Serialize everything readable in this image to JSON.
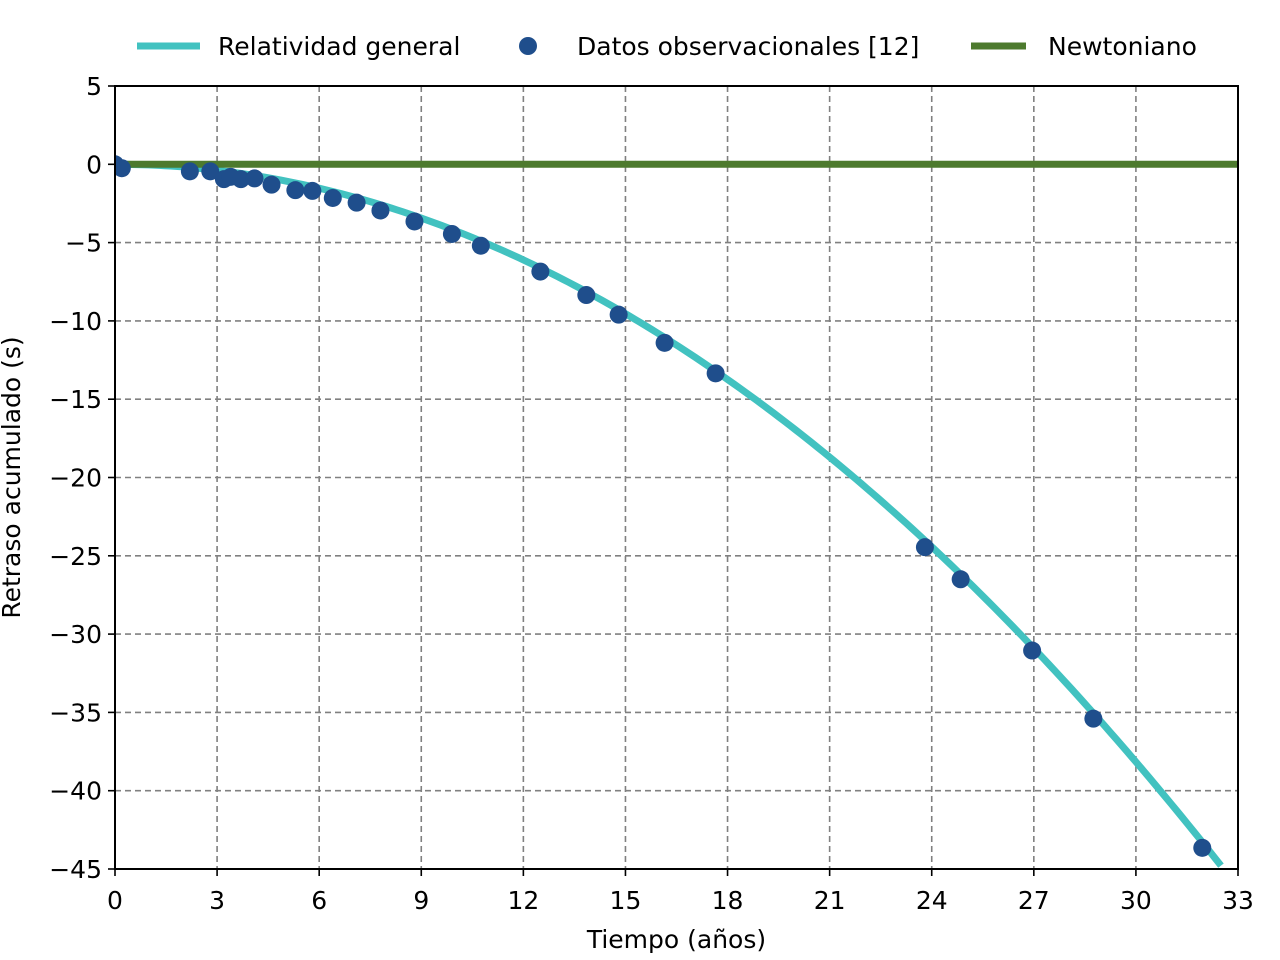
{
  "chart_data": {
    "type": "line",
    "title": "",
    "xlabel": "Tiempo (años)",
    "ylabel": "Retraso acumulado (s)",
    "xlim": [
      0,
      33
    ],
    "ylim": [
      -45,
      5
    ],
    "xticks": [
      0,
      3,
      6,
      9,
      12,
      15,
      18,
      21,
      24,
      27,
      30,
      33
    ],
    "yticks": [
      5,
      0,
      -5,
      -10,
      -15,
      -20,
      -25,
      -30,
      -35,
      -40,
      -45
    ],
    "grid": true,
    "legend_position": "top-center",
    "series": [
      {
        "name": "Relatividad general",
        "kind": "line",
        "color": "#42c2c0",
        "curve": {
          "form": "quadratic",
          "a": -0.0424
        },
        "x_max": 32.5
      },
      {
        "name": "Datos observacionales [12]",
        "kind": "scatter",
        "color": "#1f4e8c",
        "points": [
          [
            0.0,
            0.0
          ],
          [
            0.2,
            -0.25
          ],
          [
            2.2,
            -0.45
          ],
          [
            2.8,
            -0.45
          ],
          [
            3.2,
            -0.95
          ],
          [
            3.4,
            -0.8
          ],
          [
            3.7,
            -0.95
          ],
          [
            4.1,
            -0.9
          ],
          [
            4.6,
            -1.3
          ],
          [
            5.3,
            -1.65
          ],
          [
            5.8,
            -1.7
          ],
          [
            6.4,
            -2.15
          ],
          [
            7.1,
            -2.45
          ],
          [
            7.8,
            -2.95
          ],
          [
            8.8,
            -3.65
          ],
          [
            9.9,
            -4.45
          ],
          [
            10.75,
            -5.2
          ],
          [
            12.5,
            -6.85
          ],
          [
            13.85,
            -8.35
          ],
          [
            14.8,
            -9.6
          ],
          [
            16.15,
            -11.4
          ],
          [
            17.65,
            -13.35
          ],
          [
            23.8,
            -24.45
          ],
          [
            24.85,
            -26.5
          ],
          [
            26.95,
            -31.05
          ],
          [
            28.75,
            -35.4
          ],
          [
            31.95,
            -43.65
          ]
        ]
      },
      {
        "name": "Newtoniano",
        "kind": "line",
        "color": "#4d7a2e",
        "values_y": 0
      }
    ]
  }
}
